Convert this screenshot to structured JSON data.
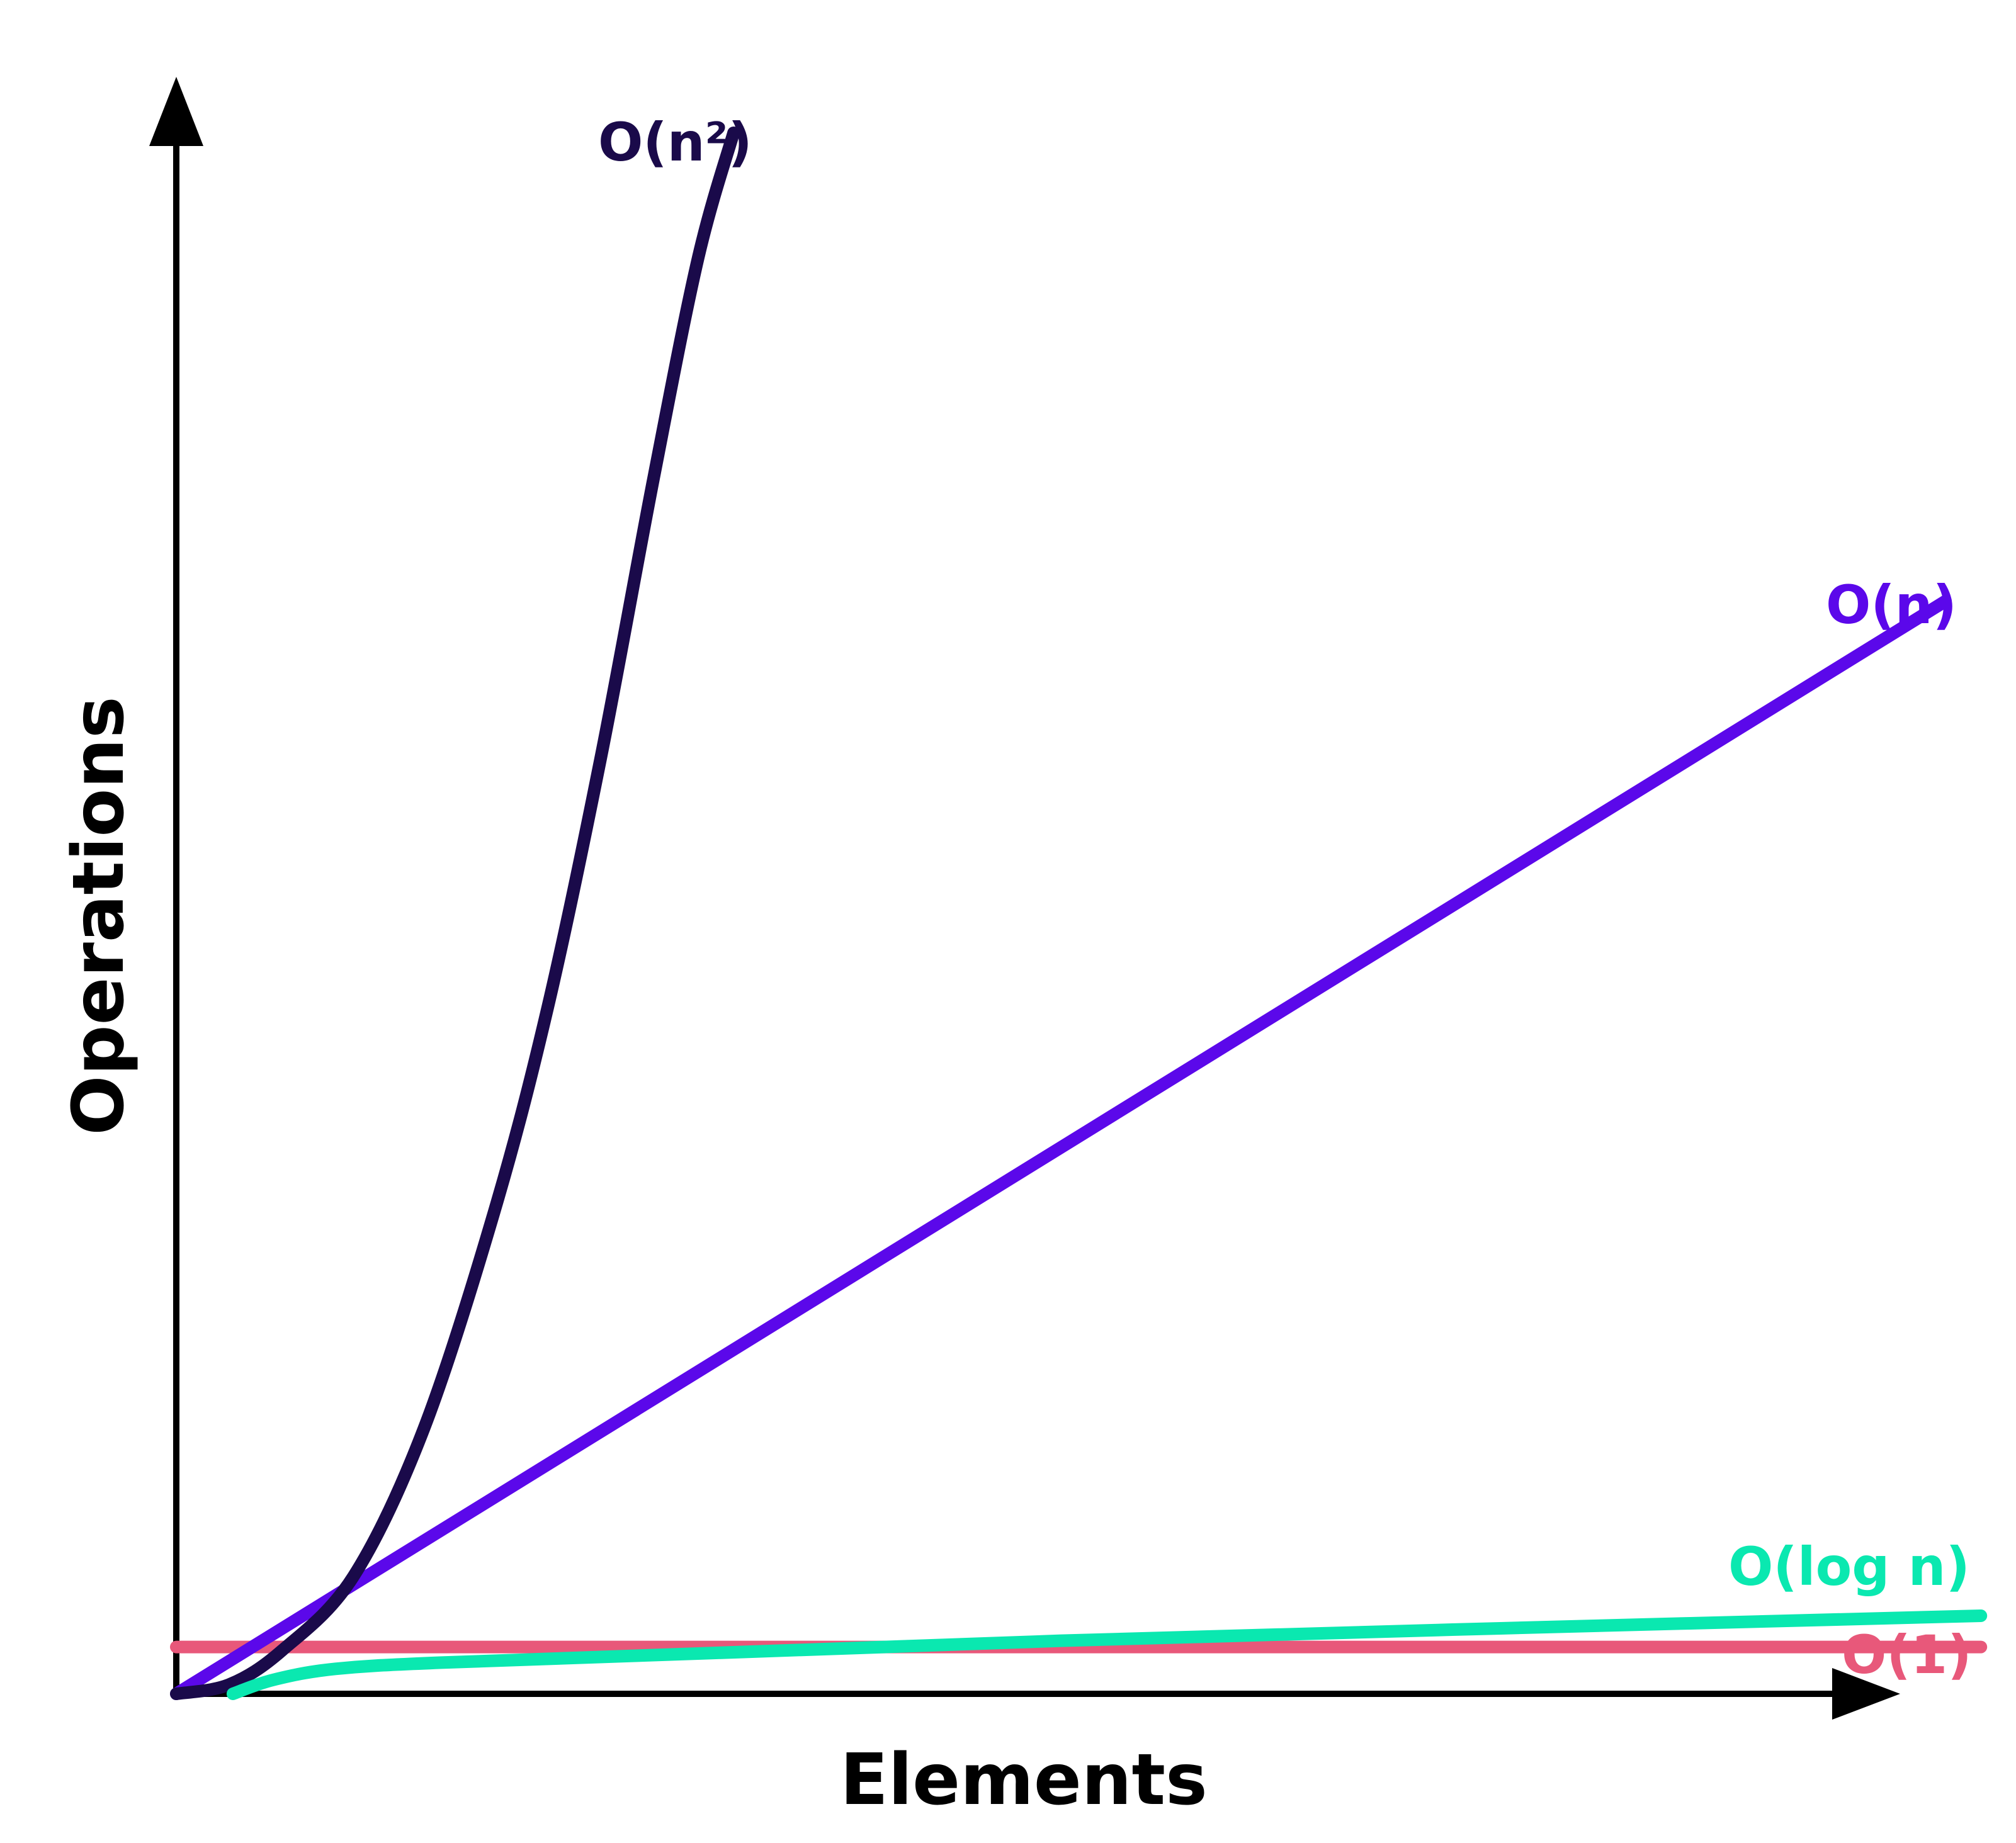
{
  "chart_data": {
    "type": "line",
    "title": "",
    "xlabel": "Elements",
    "ylabel": "Operations",
    "grid": false,
    "legend": "none",
    "xlim": [
      0,
      10
    ],
    "ylim": [
      0,
      10
    ],
    "series": [
      {
        "name": "O(n²)",
        "color": "#1a0a4a",
        "points": [
          [
            0,
            0
          ],
          [
            0.3,
            0.06
          ],
          [
            0.6,
            0.28
          ],
          [
            1.0,
            0.75
          ],
          [
            1.4,
            1.7
          ],
          [
            1.8,
            3.1
          ],
          [
            2.1,
            4.4
          ],
          [
            2.4,
            6.0
          ],
          [
            2.7,
            7.8
          ],
          [
            2.95,
            9.2
          ],
          [
            3.15,
            10.0
          ]
        ]
      },
      {
        "name": "O(n)",
        "color": "#5b08ea",
        "points": [
          [
            0,
            0
          ],
          [
            10,
            7.0
          ]
        ]
      },
      {
        "name": "O(log n)",
        "color": "#0ae8b0",
        "points": [
          [
            0.32,
            0
          ],
          [
            0.55,
            0.09
          ],
          [
            0.9,
            0.16
          ],
          [
            1.5,
            0.2
          ],
          [
            3.0,
            0.26
          ],
          [
            5.0,
            0.34
          ],
          [
            7.5,
            0.42
          ],
          [
            10.2,
            0.5
          ]
        ]
      },
      {
        "name": "O(1)",
        "color": "#e8587a",
        "points": [
          [
            0,
            0.3
          ],
          [
            10.2,
            0.3
          ]
        ]
      }
    ]
  }
}
